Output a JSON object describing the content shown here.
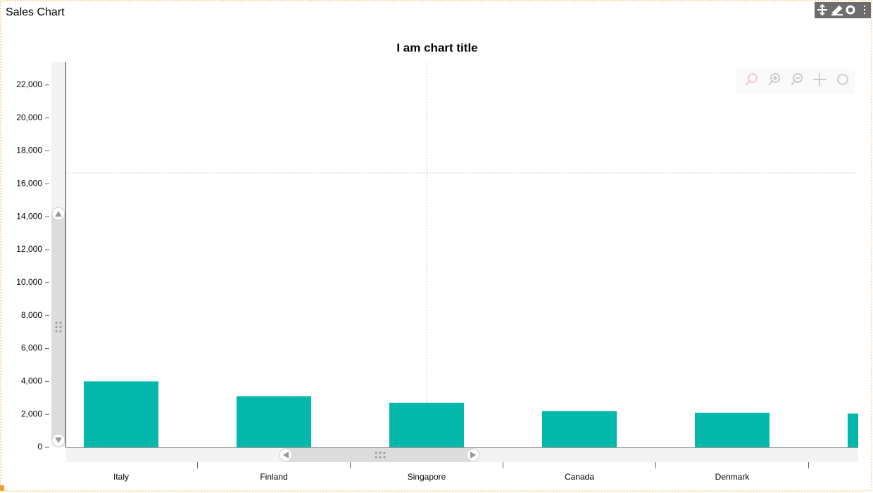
{
  "widget": {
    "title": "Sales Chart"
  },
  "chart_data": {
    "type": "bar",
    "title": "I am chart title",
    "categories": [
      "Italy",
      "Finland",
      "Singapore",
      "Canada",
      "Denmark",
      null
    ],
    "values": [
      4000,
      3100,
      2700,
      2200,
      2100,
      2050
    ],
    "color": "#02b8aa",
    "ylim": [
      0,
      23400
    ],
    "yticks": [
      0,
      {
        "value": 2000,
        "label": "2,000"
      },
      {
        "value": 4000,
        "label": "4,000"
      },
      {
        "value": 6000,
        "label": "6,000"
      },
      {
        "value": 8000,
        "label": "8,000"
      },
      {
        "value": 10000,
        "label": "10,000"
      },
      {
        "value": 12000,
        "label": "12,000"
      },
      {
        "value": 14000,
        "label": "14,000"
      },
      {
        "value": 16000,
        "label": "16,000"
      },
      {
        "value": 18000,
        "label": "18,000"
      },
      {
        "value": 20000,
        "label": "20,000"
      },
      {
        "value": 22000,
        "label": "22,000"
      }
    ],
    "grid": false
  }
}
